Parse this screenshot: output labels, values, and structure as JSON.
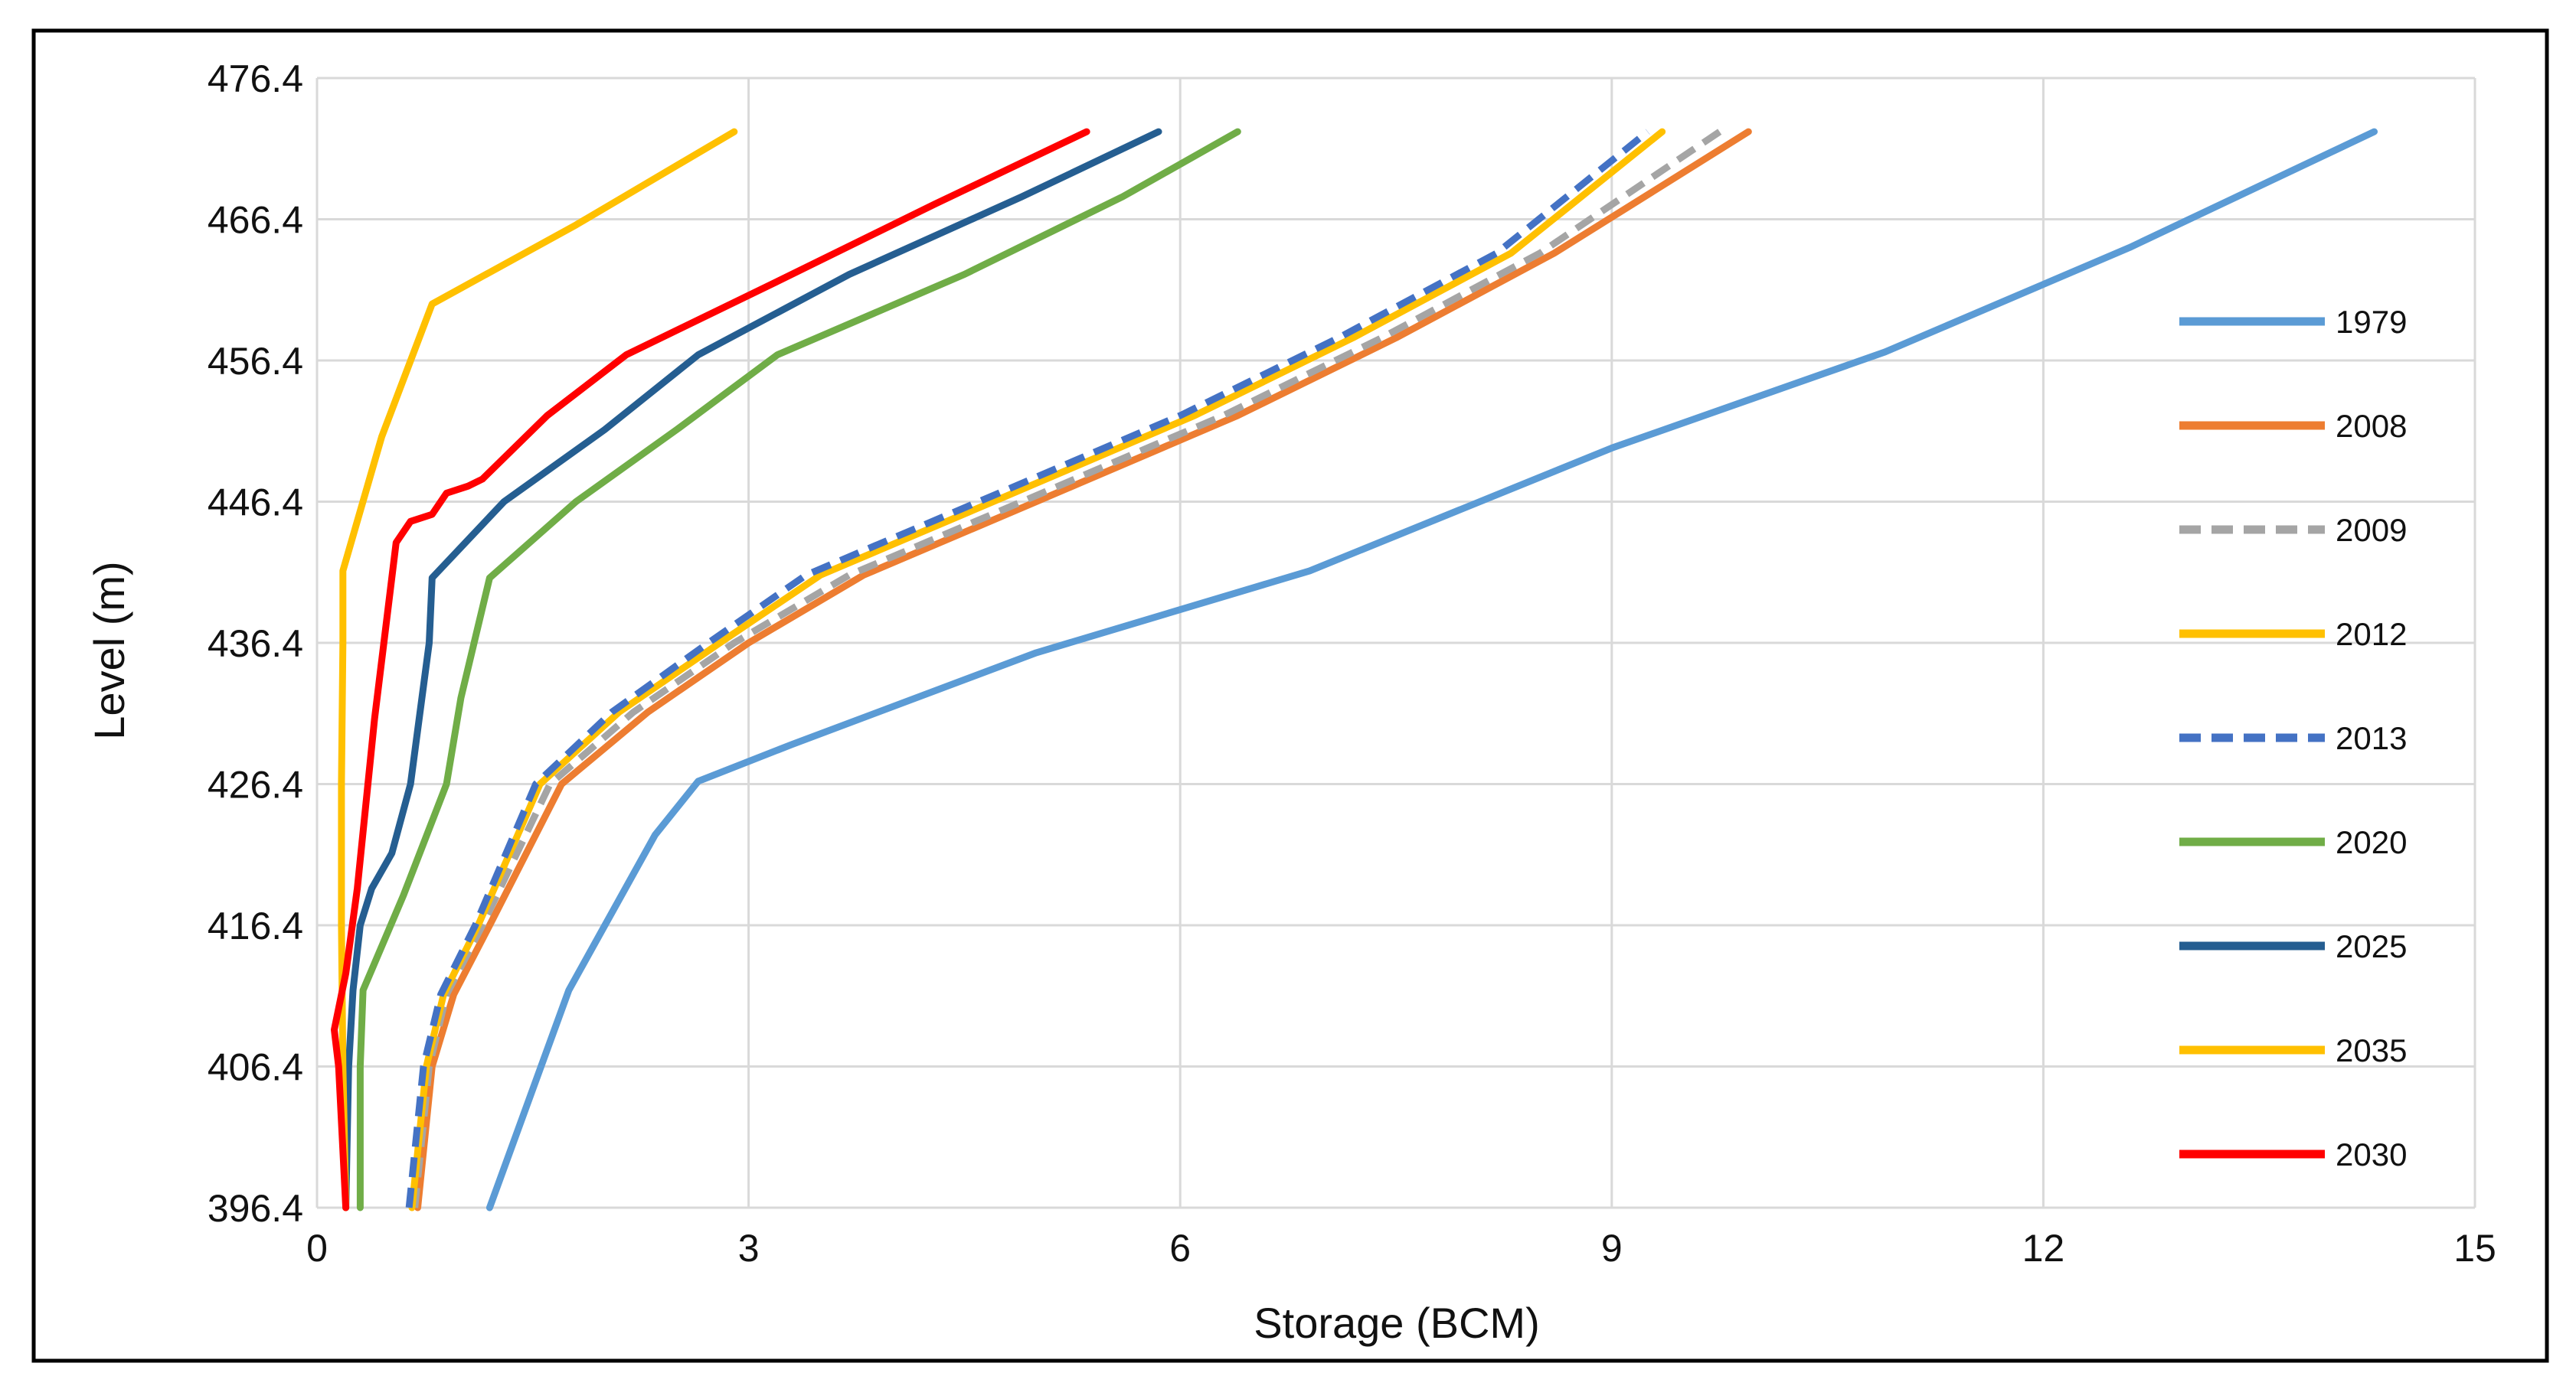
{
  "chart_data": {
    "type": "line",
    "title": "",
    "xlabel": "Storage (BCM)",
    "ylabel": "Level (m)",
    "xlim": [
      0,
      15
    ],
    "ylim": [
      396.4,
      476.4
    ],
    "xticks": [
      0,
      3,
      6,
      9,
      12,
      15
    ],
    "yticks": [
      396.4,
      406.4,
      416.4,
      426.4,
      436.4,
      446.4,
      456.4,
      466.4,
      476.4
    ],
    "grid": true,
    "legend_position": "right",
    "series": [
      {
        "name": "1979",
        "color": "#5B9BD5",
        "dashed": false,
        "points": [
          [
            1.2,
            396.4
          ],
          [
            1.75,
            411.8
          ],
          [
            2.35,
            422.8
          ],
          [
            2.65,
            426.6
          ],
          [
            3.3,
            429.2
          ],
          [
            5.0,
            435.7
          ],
          [
            6.9,
            441.5
          ],
          [
            9.0,
            450.2
          ],
          [
            10.9,
            457.0
          ],
          [
            12.6,
            464.4
          ],
          [
            14.3,
            472.6
          ]
        ]
      },
      {
        "name": "2008",
        "color": "#ED7D31",
        "dashed": false,
        "points": [
          [
            0.7,
            396.4
          ],
          [
            0.8,
            406.4
          ],
          [
            0.95,
            411.5
          ],
          [
            1.2,
            416.4
          ],
          [
            1.7,
            426.4
          ],
          [
            2.3,
            431.5
          ],
          [
            3.0,
            436.4
          ],
          [
            3.8,
            441.2
          ],
          [
            5.0,
            446.4
          ],
          [
            6.4,
            452.5
          ],
          [
            7.5,
            458.0
          ],
          [
            8.6,
            464.0
          ],
          [
            9.95,
            472.6
          ]
        ]
      },
      {
        "name": "2009",
        "color": "#A5A5A5",
        "dashed": true,
        "points": [
          [
            0.68,
            396.4
          ],
          [
            0.78,
            406.4
          ],
          [
            0.9,
            411.5
          ],
          [
            1.15,
            416.4
          ],
          [
            1.62,
            426.4
          ],
          [
            2.2,
            431.5
          ],
          [
            2.9,
            436.4
          ],
          [
            3.7,
            441.2
          ],
          [
            4.9,
            446.4
          ],
          [
            6.3,
            452.5
          ],
          [
            7.4,
            458.0
          ],
          [
            8.5,
            464.0
          ],
          [
            9.75,
            472.6
          ]
        ]
      },
      {
        "name": "2012",
        "color": "#FFC000",
        "dashed": false,
        "points": [
          [
            0.66,
            396.4
          ],
          [
            0.76,
            406.4
          ],
          [
            0.88,
            411.5
          ],
          [
            1.12,
            416.4
          ],
          [
            1.55,
            426.4
          ],
          [
            2.1,
            431.5
          ],
          [
            2.8,
            436.4
          ],
          [
            3.5,
            441.2
          ],
          [
            4.7,
            446.4
          ],
          [
            6.1,
            452.5
          ],
          [
            7.2,
            458.0
          ],
          [
            8.3,
            464.0
          ],
          [
            9.35,
            472.6
          ]
        ]
      },
      {
        "name": "2013",
        "color": "#4472C4",
        "dashed": true,
        "points": [
          [
            0.64,
            396.4
          ],
          [
            0.74,
            406.4
          ],
          [
            0.86,
            411.5
          ],
          [
            1.1,
            416.4
          ],
          [
            1.52,
            426.4
          ],
          [
            2.05,
            431.5
          ],
          [
            2.72,
            436.4
          ],
          [
            3.4,
            441.2
          ],
          [
            4.6,
            446.4
          ],
          [
            6.0,
            452.5
          ],
          [
            7.1,
            458.0
          ],
          [
            8.2,
            464.0
          ],
          [
            9.25,
            472.6
          ]
        ]
      },
      {
        "name": "2020",
        "color": "#70AD47",
        "dashed": false,
        "points": [
          [
            0.3,
            396.4
          ],
          [
            0.3,
            406.4
          ],
          [
            0.32,
            411.8
          ],
          [
            0.6,
            418.5
          ],
          [
            0.9,
            426.4
          ],
          [
            1.0,
            432.5
          ],
          [
            1.2,
            441.0
          ],
          [
            1.8,
            446.4
          ],
          [
            2.5,
            451.5
          ],
          [
            3.2,
            456.8
          ],
          [
            4.5,
            462.5
          ],
          [
            5.6,
            468.0
          ],
          [
            6.4,
            472.6
          ]
        ]
      },
      {
        "name": "2025",
        "color": "#255E91",
        "dashed": false,
        "points": [
          [
            0.2,
            396.4
          ],
          [
            0.22,
            406.4
          ],
          [
            0.25,
            411.8
          ],
          [
            0.3,
            416.4
          ],
          [
            0.38,
            419.0
          ],
          [
            0.52,
            421.5
          ],
          [
            0.65,
            426.4
          ],
          [
            0.78,
            436.4
          ],
          [
            0.8,
            441.0
          ],
          [
            1.3,
            446.4
          ],
          [
            2.0,
            451.5
          ],
          [
            2.65,
            456.8
          ],
          [
            3.7,
            462.5
          ],
          [
            4.9,
            468.0
          ],
          [
            5.85,
            472.6
          ]
        ]
      },
      {
        "name": "2035",
        "color": "#FFC000",
        "dashed": false,
        "points": [
          [
            0.2,
            396.4
          ],
          [
            0.18,
            406.4
          ],
          [
            0.17,
            416.4
          ],
          [
            0.17,
            426.4
          ],
          [
            0.18,
            436.4
          ],
          [
            0.18,
            441.5
          ],
          [
            0.45,
            451.0
          ],
          [
            0.8,
            460.4
          ],
          [
            1.8,
            466.0
          ],
          [
            2.9,
            472.6
          ]
        ]
      },
      {
        "name": "2030",
        "color": "#FF0000",
        "dashed": false,
        "points": [
          [
            0.2,
            396.4
          ],
          [
            0.15,
            406.4
          ],
          [
            0.12,
            409.0
          ],
          [
            0.2,
            413.0
          ],
          [
            0.28,
            419.0
          ],
          [
            0.4,
            431.0
          ],
          [
            0.55,
            443.5
          ],
          [
            0.65,
            445.0
          ],
          [
            0.8,
            445.5
          ],
          [
            0.9,
            447.0
          ],
          [
            1.05,
            447.5
          ],
          [
            1.15,
            448.0
          ],
          [
            1.6,
            452.5
          ],
          [
            2.15,
            456.8
          ],
          [
            3.2,
            462.0
          ],
          [
            4.3,
            467.5
          ],
          [
            5.35,
            472.6
          ]
        ]
      }
    ]
  }
}
